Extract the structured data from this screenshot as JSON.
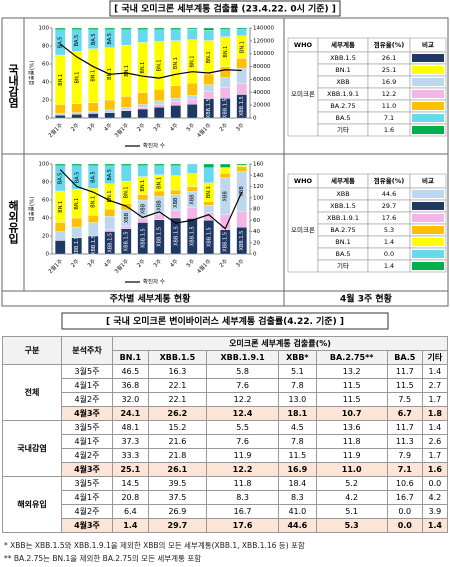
{
  "top_title": "[ 국내 오미크론 세부계통 검출률 (23.4.22. 0시 기준) ]",
  "panels": [
    {
      "label": "국내감염",
      "chart_data": {
        "type": "bar",
        "stacked": true,
        "ylabel": "검출률(%)",
        "categories": [
          "2월1주",
          "2주",
          "3주",
          "4주",
          "3월1주",
          "2주",
          "3주",
          "4주",
          "5주",
          "4월1주",
          "2주",
          "3주"
        ],
        "series": [
          {
            "name": "XBB.1.5",
            "color": "#1f3864",
            "values": [
              3,
              4,
              5,
              6,
              8,
              10,
              12,
              14,
              15.2,
              21.6,
              21.8,
              26.1
            ]
          },
          {
            "name": "XBB.1.9.1",
            "color": "#f4b6e6",
            "values": [
              0,
              0,
              0,
              0,
              1,
              2,
              3,
              4,
              5.5,
              7.6,
              11.9,
              12.2
            ]
          },
          {
            "name": "XBB",
            "color": "#bdd7ee",
            "values": [
              2,
              2,
              2,
              3,
              3,
              3,
              4,
              4,
              4.5,
              7.8,
              11.5,
              16.9
            ]
          },
          {
            "name": "BA.2.75",
            "color": "#ffc000",
            "values": [
              10,
              10,
              10,
              11,
              12,
              13,
              13,
              14,
              13.6,
              11.8,
              11.9,
              11.0
            ]
          },
          {
            "name": "BN.1",
            "color": "#ffff00",
            "values": [
              55,
              58,
              60,
              58,
              57,
              56,
              53,
              50,
              48.1,
              37.3,
              33.3,
              25.1
            ]
          },
          {
            "name": "BA.5",
            "color": "#66d9ef",
            "values": [
              28,
              24,
              21,
              20,
              17,
              14,
              13,
              12,
              11.7,
              11.3,
              7.9,
              7.1
            ]
          },
          {
            "name": "기타",
            "color": "#00b050",
            "values": [
              2,
              2,
              2,
              2,
              2,
              2,
              2,
              2,
              1.4,
              2.6,
              1.7,
              1.6
            ]
          },
          {
            "name": "확진자 수",
            "type": "line",
            "axis": "y2",
            "color": "#000000",
            "values": [
              115000,
              95000,
              80000,
              68000,
              70000,
              65000,
              62000,
              68000,
              72000,
              70000,
              75000,
              74000
            ]
          }
        ],
        "ylim": [
          0,
          100
        ],
        "yticks": [
          0,
          20,
          40,
          60,
          80,
          100
        ],
        "y2lim": [
          0,
          140000
        ],
        "y2ticks": [
          0,
          20000,
          40000,
          60000,
          80000,
          100000,
          120000,
          140000
        ]
      },
      "share_table": {
        "headers": [
          "WHO",
          "세부계통",
          "점유율(%)",
          "비교"
        ],
        "who": "오미크론",
        "rows": [
          {
            "name": "XBB.1.5",
            "share": "26.1",
            "color": "#1f3864"
          },
          {
            "name": "BN.1",
            "share": "25.1",
            "color": "#ffff00"
          },
          {
            "name": "XBB",
            "share": "16.9",
            "color": "#bdd7ee"
          },
          {
            "name": "XBB.1.9.1",
            "share": "12.2",
            "color": "#f4b6e6"
          },
          {
            "name": "BA.2.75",
            "share": "11.0",
            "color": "#ffc000"
          },
          {
            "name": "BA.5",
            "share": "7.1",
            "color": "#66d9ef"
          },
          {
            "name": "기타",
            "share": "1.6",
            "color": "#00b050"
          }
        ]
      }
    },
    {
      "label": "해외유입",
      "chart_data": {
        "type": "bar",
        "stacked": true,
        "ylabel": "검출률(%)",
        "categories": [
          "2월1주",
          "2주",
          "3주",
          "4주",
          "3월1주",
          "2주",
          "3주",
          "4주",
          "5주",
          "4월1주",
          "2주",
          "3주"
        ],
        "series": [
          {
            "name": "XBB.1.5",
            "color": "#1f3864",
            "values": [
              15,
              18,
              20,
              25,
              28,
              35,
              38,
              40,
              39.5,
              37.5,
              26.9,
              29.7
            ]
          },
          {
            "name": "XBB.1.9.1",
            "color": "#f4b6e6",
            "values": [
              0,
              0,
              0,
              2,
              3,
              5,
              6,
              8,
              11.8,
              8.3,
              16.7,
              17.6
            ]
          },
          {
            "name": "XBB",
            "color": "#bdd7ee",
            "values": [
              10,
              12,
              15,
              15,
              18,
              20,
              20,
              18,
              18.4,
              8.3,
              41.0,
              44.6
            ]
          },
          {
            "name": "BA.2.75",
            "color": "#ffc000",
            "values": [
              10,
              10,
              8,
              8,
              7,
              6,
              6,
              5,
              5.2,
              4.2,
              5.1,
              5.3
            ]
          },
          {
            "name": "BN.1",
            "color": "#ffff00",
            "values": [
              35,
              32,
              30,
              28,
              25,
              20,
              18,
              16,
              14.5,
              20.8,
              6.4,
              1.4
            ]
          },
          {
            "name": "BA.5",
            "color": "#66d9ef",
            "values": [
              28,
              26,
              25,
              20,
              17,
              12,
              10,
              11,
              10.6,
              16.7,
              0.0,
              0.0
            ]
          },
          {
            "name": "기타",
            "color": "#00b050",
            "values": [
              2,
              2,
              2,
              2,
              2,
              2,
              2,
              2,
              0.0,
              4.2,
              3.9,
              1.4
            ]
          },
          {
            "name": "확진자 수",
            "type": "line",
            "axis": "y2",
            "color": "#000000",
            "values": [
              150,
              120,
              110,
              95,
              85,
              65,
              75,
              55,
              60,
              70,
              45,
              110
            ]
          }
        ],
        "ylim": [
          0,
          100
        ],
        "yticks": [
          0,
          20,
          40,
          60,
          80,
          100
        ],
        "y2lim": [
          0,
          160
        ],
        "y2ticks": [
          0,
          20,
          40,
          60,
          80,
          100,
          120,
          140,
          160
        ]
      },
      "share_table": {
        "headers": [
          "WHO",
          "세부계통",
          "점유율(%)",
          "비교"
        ],
        "who": "오미크론",
        "rows": [
          {
            "name": "XBB",
            "share": "44.6",
            "color": "#bdd7ee"
          },
          {
            "name": "XBB.1.5",
            "share": "29.7",
            "color": "#1f3864"
          },
          {
            "name": "XBB.1.9.1",
            "share": "17.6",
            "color": "#f4b6e6"
          },
          {
            "name": "BA.2.75",
            "share": "5.3",
            "color": "#ffc000"
          },
          {
            "name": "BN.1",
            "share": "1.4",
            "color": "#ffff00"
          },
          {
            "name": "BA.5",
            "share": "0.0",
            "color": "#66d9ef"
          },
          {
            "name": "기타",
            "share": "1.4",
            "color": "#00b050"
          }
        ]
      }
    }
  ],
  "captions": [
    "주차별 세부계통 현황",
    "4월 3주 현황"
  ],
  "table_title": "[ 국내 오미크론 변이바이러스 세부계통 검출률(4.22. 기준) ]",
  "table": {
    "headers": [
      "구분",
      "분석주차",
      "오미크론 세부계통 검출률(%)"
    ],
    "columns": [
      "BN.1",
      "XBB.1.5",
      "XBB.1.9.1",
      "XBB*",
      "BA.2.75**",
      "BA.5",
      "기타"
    ],
    "groups": [
      {
        "name": "전체",
        "rows": [
          {
            "week": "3월5주",
            "values": [
              "46.5",
              "16.3",
              "5.8",
              "5.1",
              "13.2",
              "11.7",
              "1.4"
            ]
          },
          {
            "week": "4월1주",
            "values": [
              "36.8",
              "22.1",
              "7.6",
              "7.8",
              "11.5",
              "11.5",
              "2.7"
            ]
          },
          {
            "week": "4월2주",
            "values": [
              "32.0",
              "22.1",
              "12.2",
              "13.0",
              "11.5",
              "7.5",
              "1.7"
            ]
          },
          {
            "week": "4월3주",
            "values": [
              "24.1",
              "26.2",
              "12.4",
              "18.1",
              "10.7",
              "6.7",
              "1.8"
            ]
          }
        ]
      },
      {
        "name": "국내감염",
        "rows": [
          {
            "week": "3월5주",
            "values": [
              "48.1",
              "15.2",
              "5.5",
              "4.5",
              "13.6",
              "11.7",
              "1.4"
            ]
          },
          {
            "week": "4월1주",
            "values": [
              "37.3",
              "21.6",
              "7.6",
              "7.8",
              "11.8",
              "11.3",
              "2.6"
            ]
          },
          {
            "week": "4월2주",
            "values": [
              "33.3",
              "21.8",
              "11.9",
              "11.5",
              "11.9",
              "7.9",
              "1.7"
            ]
          },
          {
            "week": "4월3주",
            "values": [
              "25.1",
              "26.1",
              "12.2",
              "16.9",
              "11.0",
              "7.1",
              "1.6"
            ]
          }
        ]
      },
      {
        "name": "해외유입",
        "rows": [
          {
            "week": "3월5주",
            "values": [
              "14.5",
              "39.5",
              "11.8",
              "18.4",
              "5.2",
              "10.6",
              "0.0"
            ]
          },
          {
            "week": "4월1주",
            "values": [
              "20.8",
              "37.5",
              "8.3",
              "8.3",
              "4.2",
              "16.7",
              "4.2"
            ]
          },
          {
            "week": "4월2주",
            "values": [
              "6.4",
              "26.9",
              "16.7",
              "41.0",
              "5.1",
              "0.0",
              "3.9"
            ]
          },
          {
            "week": "4월3주",
            "values": [
              "1.4",
              "29.7",
              "17.6",
              "44.6",
              "5.3",
              "0.0",
              "1.4"
            ]
          }
        ]
      }
    ]
  },
  "footnotes": [
    "* XBB는 XBB.1.5와 XBB.1.9.1을 제외한 XBB의 모든 세부계통(XBB.1, XBB.1.16 등) 포함",
    "** BA.2.75는 BN.1을 제외한 BA.2.75의 모든 세부계통 포함"
  ]
}
